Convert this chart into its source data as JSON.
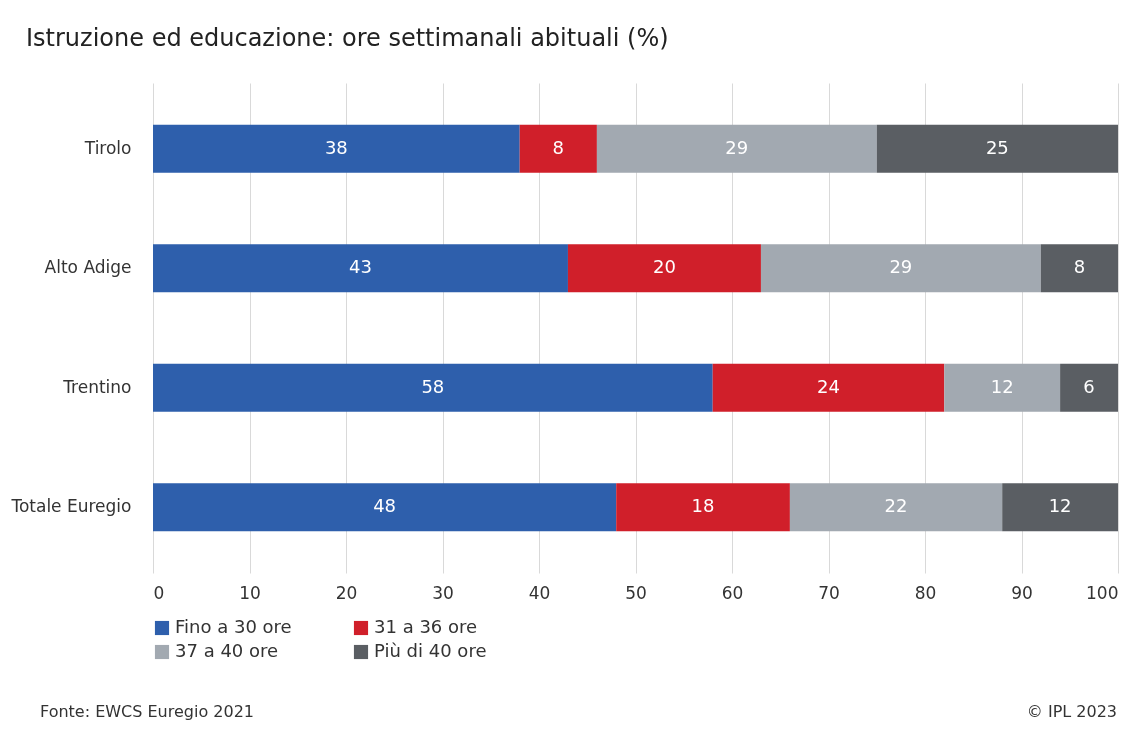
{
  "chart_data": {
    "type": "bar",
    "orientation": "horizontal",
    "stacked": true,
    "title": "Istruzione ed educazione: ore settimanali abituali (%)",
    "categories": [
      "Tirolo",
      "Alto Adige",
      "Trentino",
      "Totale Euregio"
    ],
    "series": [
      {
        "name": "Fino a 30 ore",
        "color": "#2e5fac",
        "values": [
          38,
          43,
          58,
          48
        ]
      },
      {
        "name": "31 a 36 ore",
        "color": "#d01f2a",
        "values": [
          8,
          20,
          24,
          18
        ]
      },
      {
        "name": "37 a 40 ore",
        "color": "#a2a9b1",
        "values": [
          29,
          29,
          12,
          22
        ]
      },
      {
        "name": "Più di 40 ore",
        "color": "#5a5e63",
        "values": [
          25,
          8,
          6,
          12
        ]
      }
    ],
    "xlim": [
      0,
      100
    ],
    "xticks": [
      0,
      10,
      20,
      30,
      40,
      50,
      60,
      70,
      80,
      90,
      100
    ],
    "grid": "x",
    "legend": "bottom",
    "data_labels": true,
    "annotations": [
      "Fonte: EWCS Euregio 2021",
      "© IPL 2023"
    ]
  }
}
